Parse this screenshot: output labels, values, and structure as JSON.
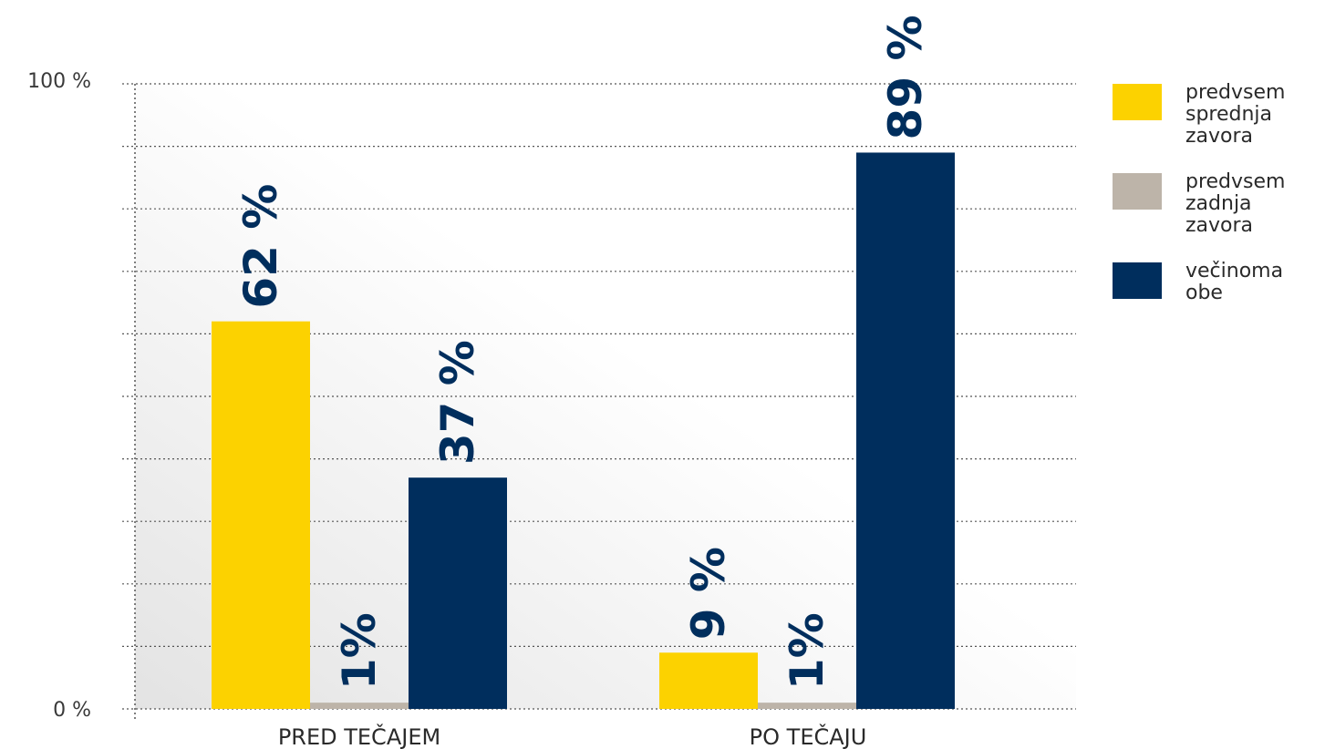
{
  "chart_data": {
    "type": "bar",
    "categories": [
      "PRED TEČAJEM",
      "PO TEČAJU"
    ],
    "series": [
      {
        "name": "predvsem sprednja zavora",
        "color": "#fcd200",
        "values": [
          62,
          9
        ],
        "labels": [
          "62 %",
          "9 %"
        ]
      },
      {
        "name": "predvsem zadnja zavora",
        "color": "#bdb4a9",
        "values": [
          1,
          1
        ],
        "labels": [
          "1%",
          "1%"
        ]
      },
      {
        "name": "večinoma obe",
        "color": "#002e5d",
        "values": [
          37,
          89
        ],
        "labels": [
          "37 %",
          "89 %"
        ]
      }
    ],
    "ylim": [
      0,
      100
    ],
    "yticks": [
      0,
      10,
      20,
      30,
      40,
      50,
      60,
      70,
      80,
      90,
      100
    ],
    "ytick_labels": {
      "min": "0 %",
      "max": "100 %"
    },
    "grid": true,
    "legend_position": "right",
    "label_color": "#002e5d",
    "gradient_colors": [
      "#e3e3e3",
      "#ffffff"
    ]
  },
  "legend": [
    {
      "label": "predvsem sprednja zavora",
      "color": "#fcd200"
    },
    {
      "label": "predvsem zadnja zavora",
      "color": "#bdb4a9"
    },
    {
      "label": "večinoma obe",
      "color": "#002e5d"
    }
  ]
}
